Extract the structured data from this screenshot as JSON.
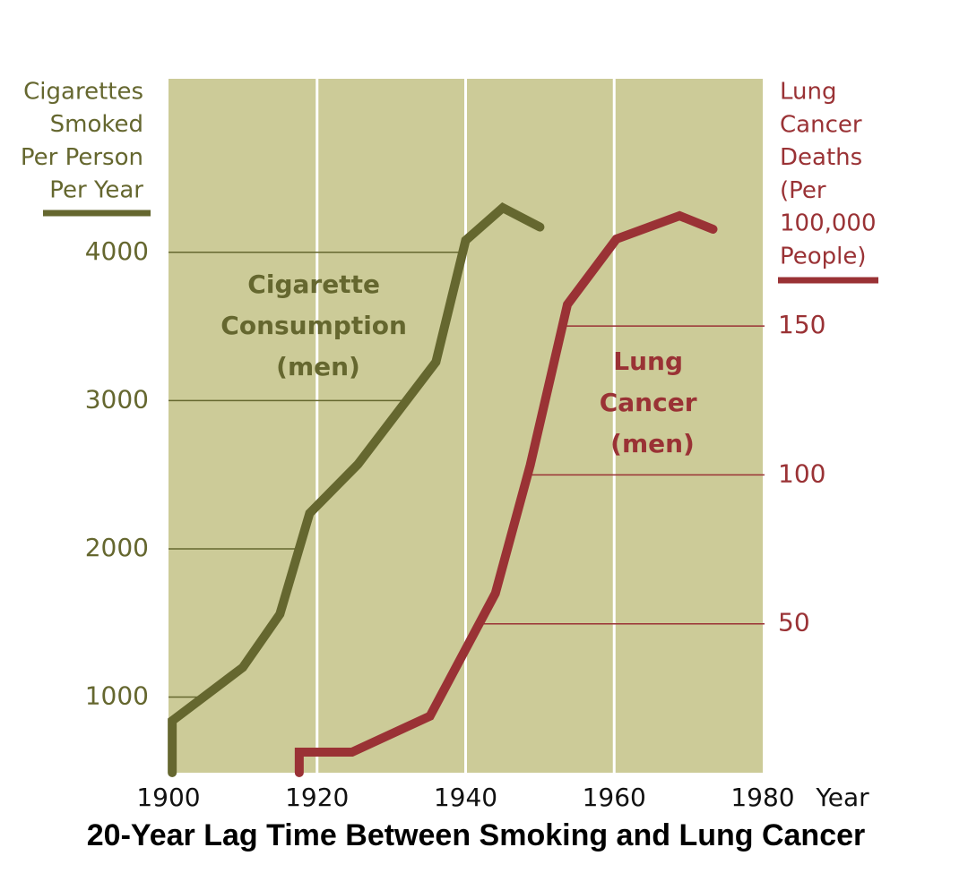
{
  "chart_data": {
    "type": "line",
    "title": "20-Year Lag Time Between Smoking and Lung Cancer",
    "x_label": "Year",
    "y_label": [
      "Cigarettes",
      "Smoked",
      "Per Person",
      "Per Year"
    ],
    "y2_label": [
      "Lung",
      "Cancer",
      "Deaths",
      "(Per",
      "100,000",
      "People)"
    ],
    "xlim": [
      1900,
      1980
    ],
    "xticks": [
      1900,
      1920,
      1940,
      1960,
      1980
    ],
    "ylim": [
      490,
      5170
    ],
    "yticks": [
      1000,
      2000,
      3000,
      4000
    ],
    "y2lim": [
      0,
      233
    ],
    "y2ticks": [
      50,
      100,
      150
    ],
    "background": "#cccb98",
    "series": [
      {
        "name": "Cigarette Consumption (men)",
        "color": "#65672f",
        "x": [
          1900.5,
          1900.5,
          1910,
          1915,
          1919,
          1925.5,
          1936,
          1940,
          1945,
          1950
        ],
        "values": [
          490,
          840,
          1200,
          1560,
          2240,
          2570,
          3260,
          4080,
          4300,
          4170
        ]
      },
      {
        "name": "Lung Cancer (men)",
        "color": "#9a3235",
        "axis": "y2",
        "x": [
          1917.6,
          1917.6,
          1924.7,
          1935.2,
          1944,
          1948.7,
          1953.7,
          1960.3,
          1968.8,
          1973.3
        ],
        "values": [
          0,
          6.9,
          6.9,
          19,
          60.2,
          103.3,
          157.2,
          179.2,
          187,
          182.5
        ]
      }
    ]
  }
}
